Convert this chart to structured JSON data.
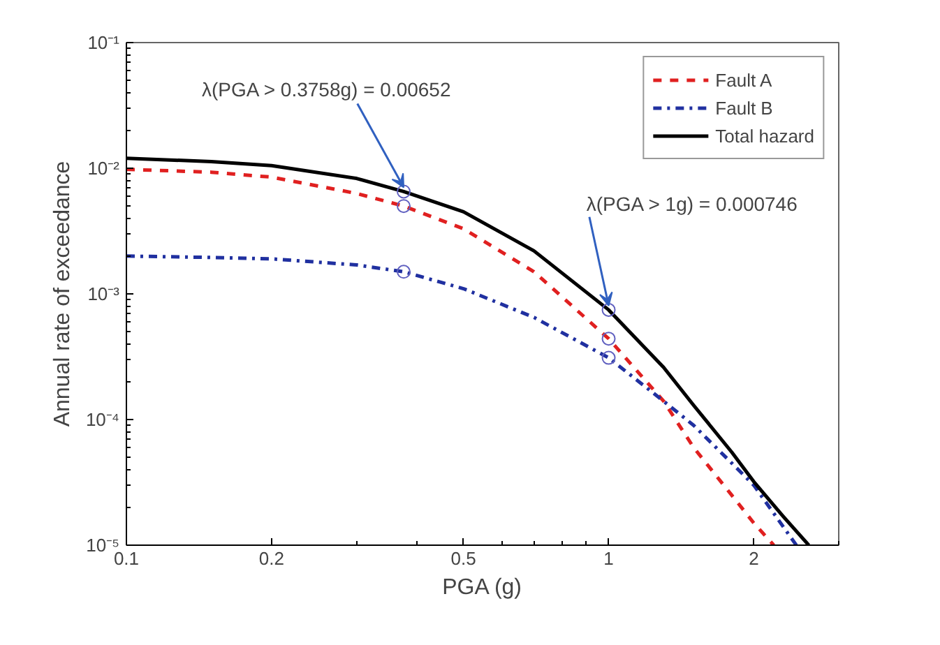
{
  "chart_data": {
    "type": "line",
    "xlabel": "PGA (g)",
    "ylabel": "Annual rate of exceedance",
    "log": "xy",
    "xlim": [
      0.1,
      3
    ],
    "ylim": [
      1e-05,
      0.1
    ],
    "xticks": [
      0.1,
      0.2,
      0.5,
      1,
      2
    ],
    "yticks": [
      {
        "value": 1e-05,
        "label": "10⁻⁵"
      },
      {
        "value": 0.0001,
        "label": "10⁻⁴"
      },
      {
        "value": 0.001,
        "label": "10⁻³"
      },
      {
        "value": 0.01,
        "label": "10⁻²"
      },
      {
        "value": 0.1,
        "label": "10⁻¹"
      }
    ],
    "grid": false,
    "legend": "top right",
    "series": [
      {
        "name": "Fault A",
        "color": "#e02020",
        "line_style": "dashed",
        "x": [
          0.1,
          0.15,
          0.2,
          0.3,
          0.3758,
          0.5,
          0.7,
          1,
          1.3,
          1.5,
          1.8,
          2,
          2.2
        ],
        "values": [
          0.0098,
          0.0093,
          0.0085,
          0.0063,
          0.005,
          0.0033,
          0.0015,
          0.00044,
          0.00014,
          6e-05,
          2.5e-05,
          1.5e-05,
          1e-05
        ]
      },
      {
        "name": "Fault B",
        "color": "#2030a0",
        "line_style": "dashdot",
        "x": [
          0.1,
          0.15,
          0.2,
          0.3,
          0.3758,
          0.5,
          0.7,
          1,
          1.3,
          1.5,
          1.8,
          2,
          2.45
        ],
        "values": [
          0.002,
          0.00195,
          0.0019,
          0.0017,
          0.0015,
          0.0011,
          0.00065,
          0.00031,
          0.00014,
          9e-05,
          4.5e-05,
          3e-05,
          1e-05
        ]
      },
      {
        "name": "Total hazard",
        "color": "#000000",
        "line_style": "solid",
        "x": [
          0.1,
          0.15,
          0.2,
          0.3,
          0.3758,
          0.5,
          0.7,
          1,
          1.3,
          1.5,
          1.8,
          2,
          2.3,
          2.6
        ],
        "values": [
          0.012,
          0.0113,
          0.0105,
          0.0083,
          0.00652,
          0.0045,
          0.0022,
          0.000746,
          0.00026,
          0.00013,
          5.5e-05,
          3.2e-05,
          1.7e-05,
          1e-05
        ]
      },
      {
        "type": "scatter",
        "color": "#6060c0",
        "marker": "circle",
        "x": [
          0.3758,
          0.3758,
          0.3758,
          1,
          1,
          1
        ],
        "values": [
          0.00652,
          0.005,
          0.0015,
          0.000746,
          0.00044,
          0.00031
        ]
      }
    ],
    "annotations": [
      {
        "text": "λ(PGA > 0.3758g) = 0.00652",
        "x": 0.3758,
        "y": 0.00652
      },
      {
        "text": "λ(PGA > 1g) = 0.000746",
        "x": 1,
        "y": 0.000746
      }
    ]
  }
}
